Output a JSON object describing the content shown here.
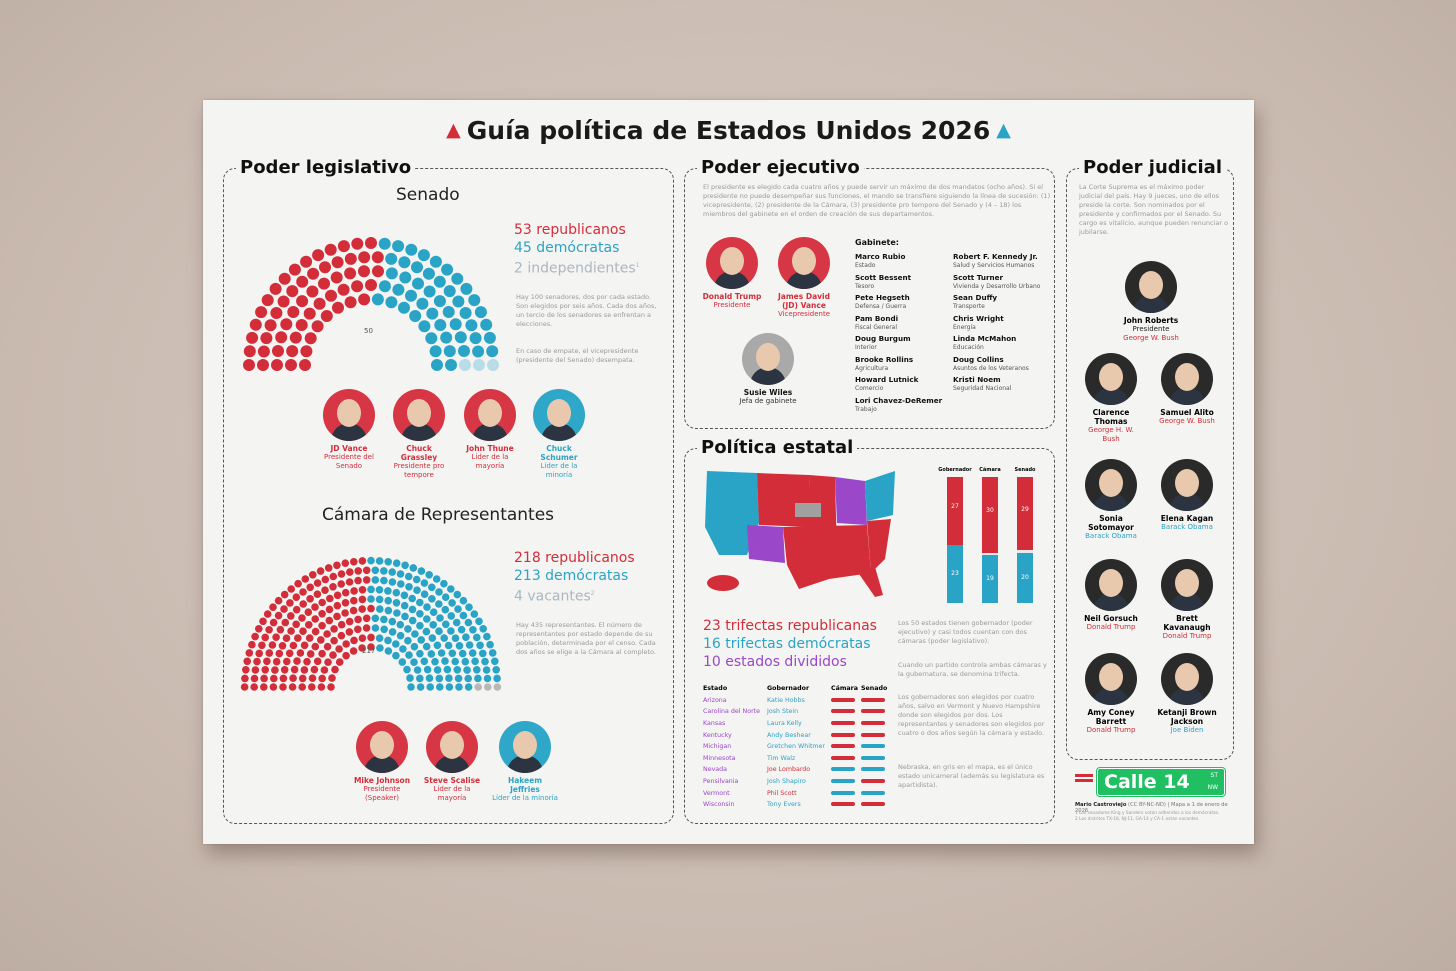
{
  "title": "Guía política de Estados Unidos 2026",
  "icons": {
    "left": "elephant-icon",
    "right": "donkey-icon"
  },
  "colors": {
    "republican": "#d42d3a",
    "democrat": "#2aa4c6",
    "independent": "#aab8c2",
    "split": "#9a47c9"
  },
  "legislativo": {
    "heading": "Poder legislativo",
    "senado": {
      "title": "Senado",
      "rep": "53 republicanos",
      "dem": "45 demócratas",
      "ind": "2 independientes",
      "ind_note": "1",
      "rep_count": 53,
      "dem_count": 45,
      "ind_count": 2,
      "mid_label": "50",
      "text1": "Hay 100 senadores, dos por cada estado. Son elegidos por seis años. Cada dos años, un tercio de los senadores se enfrentan a elecciones.",
      "text2": "En caso de empate, el vicepresidente (presidente del Senado) desempata.",
      "people": [
        {
          "name": "JD Vance",
          "role": "Presidente del Senado",
          "party": "red"
        },
        {
          "name": "Chuck Grassley",
          "role": "Presidente pro tempore",
          "party": "red"
        },
        {
          "name": "John Thune",
          "role": "Líder de la mayoría",
          "party": "red"
        },
        {
          "name": "Chuck Schumer",
          "role": "Líder de la minoría",
          "party": "blue"
        }
      ]
    },
    "camara": {
      "title": "Cámara de Representantes",
      "rep": "218 republicanos",
      "dem": "213 demócratas",
      "vac": "4 vacantes",
      "vac_note": "2",
      "rep_count": 218,
      "dem_count": 213,
      "vac_count": 4,
      "mid_label": "217",
      "text1": "Hay 435 representantes. El número de representantes por estado depende de su población, determinada por el censo. Cada dos años se elige a la Cámara al completo.",
      "people": [
        {
          "name": "Mike Johnson",
          "role": "Presidente (Speaker)",
          "party": "red"
        },
        {
          "name": "Steve Scalise",
          "role": "Líder de la mayoría",
          "party": "red"
        },
        {
          "name": "Hakeem Jeffries",
          "role": "Líder de la minoría",
          "party": "blue"
        }
      ]
    }
  },
  "ejecutivo": {
    "heading": "Poder ejecutivo",
    "text": "El presidente es elegido cada cuatro años y puede servir un máximo de dos mandatos (ocho años). Si el presidente no puede desempeñar sus funciones, el mando se transfiere siguiendo la línea de sucesión: (1) vicepresidente, (2) presidente de la Cámara, (3) presidente pro tempore del Senado y (4 – 18) los miembros del gabinete en el orden de creación de sus departamentos.",
    "people": [
      {
        "name": "Donald Trump",
        "role": "Presidente",
        "party": "red"
      },
      {
        "name": "James David (JD) Vance",
        "role": "Vicepresidente",
        "party": "red"
      },
      {
        "name": "Susie Wiles",
        "role": "Jefa de gabinete",
        "party": "grey"
      }
    ],
    "gabinete_label": "Gabinete:",
    "gabinete": [
      {
        "name": "Marco Rubio",
        "dept": "Estado"
      },
      {
        "name": "Scott Bessent",
        "dept": "Tesoro"
      },
      {
        "name": "Pete Hegseth",
        "dept": "Defensa / Guerra"
      },
      {
        "name": "Pam Bondi",
        "dept": "Fiscal General"
      },
      {
        "name": "Doug Burgum",
        "dept": "Interior"
      },
      {
        "name": "Brooke Rollins",
        "dept": "Agricultura"
      },
      {
        "name": "Howard Lutnick",
        "dept": "Comercio"
      },
      {
        "name": "Lori Chavez-DeRemer",
        "dept": "Trabajo"
      },
      {
        "name": "Robert F. Kennedy Jr.",
        "dept": "Salud y Servicios Humanos"
      },
      {
        "name": "Scott Turner",
        "dept": "Vivienda y Desarrollo Urbano"
      },
      {
        "name": "Sean Duffy",
        "dept": "Transporte"
      },
      {
        "name": "Chris Wright",
        "dept": "Energía"
      },
      {
        "name": "Linda McMahon",
        "dept": "Educación"
      },
      {
        "name": "Doug Collins",
        "dept": "Asuntos de los Veteranos"
      },
      {
        "name": "Kristi Noem",
        "dept": "Seguridad Nacional"
      }
    ]
  },
  "estatal": {
    "heading": "Política estatal",
    "bars": [
      {
        "label": "Gobernador",
        "rep": 27,
        "dem": 23,
        "rep_label": "27",
        "dem_label": "23"
      },
      {
        "label": "Cámara",
        "rep": 30,
        "dem": 19,
        "rep_label": "30",
        "dem_label": "19"
      },
      {
        "label": "Senado",
        "rep": 29,
        "dem": 20,
        "rep_label": "29",
        "dem_label": "20"
      }
    ],
    "trifectas_rep": "23 trifectas republicanas",
    "trifectas_dem": "16 trifectas demócratas",
    "divididos": "10 estados divididos",
    "text1": "Los 50 estados tienen gobernador (poder ejecutivo) y casi todos cuentan con dos cámaras (poder legislativo).",
    "text2": "Cuando un partido controla ambas cámaras y la gubernatura, se denomina trifecta.",
    "text3": "Los gobernadores son elegidos por cuatro años, salvo en Vermont y Nuevo Hampshire donde son elegidos por dos. Los representantes y senadores son elegidos por cuatro o dos años según la cámara y estado.",
    "text4": "Nebraska, en gris en el mapa, es el único estado unicameral (además su legislatura es apartidista).",
    "table_headers": [
      "Estado",
      "Gobernador",
      "Cámara",
      "Senado"
    ],
    "table": [
      {
        "state": "Arizona",
        "gov": "Katie Hobbs",
        "gov_party": "blue",
        "house": "red",
        "senate": "red"
      },
      {
        "state": "Carolina del Norte",
        "gov": "Josh Stein",
        "gov_party": "blue",
        "house": "red",
        "senate": "red"
      },
      {
        "state": "Kansas",
        "gov": "Laura Kelly",
        "gov_party": "blue",
        "house": "red",
        "senate": "red"
      },
      {
        "state": "Kentucky",
        "gov": "Andy Beshear",
        "gov_party": "blue",
        "house": "red",
        "senate": "red"
      },
      {
        "state": "Michigan",
        "gov": "Gretchen Whitmer",
        "gov_party": "blue",
        "house": "red",
        "senate": "blue"
      },
      {
        "state": "Minnesota",
        "gov": "Tim Walz",
        "gov_party": "blue",
        "house": "red",
        "senate": "blue"
      },
      {
        "state": "Nevada",
        "gov": "Joe Lombardo",
        "gov_party": "red",
        "house": "blue",
        "senate": "blue"
      },
      {
        "state": "Pensilvania",
        "gov": "Josh Shapiro",
        "gov_party": "blue",
        "house": "blue",
        "senate": "red"
      },
      {
        "state": "Vermont",
        "gov": "Phil Scott",
        "gov_party": "red",
        "house": "blue",
        "senate": "blue"
      },
      {
        "state": "Wisconsin",
        "gov": "Tony Evers",
        "gov_party": "blue",
        "house": "red",
        "senate": "red"
      }
    ]
  },
  "judicial": {
    "heading": "Poder judicial",
    "text": "La Corte Suprema es el máximo poder judicial del país. Hay 9 jueces, uno de ellos preside la corte. Son nominados por el presidente y confirmados por el Senado. Su cargo es vitalicio, aunque pueden renunciar o jubilarse.",
    "justices": [
      {
        "name": "John Roberts",
        "title": "Presidente",
        "by": "George W. Bush",
        "party": "red"
      },
      {
        "name": "Clarence Thomas",
        "title": "",
        "by": "George H. W. Bush",
        "party": "red"
      },
      {
        "name": "Samuel Alito",
        "title": "",
        "by": "George W. Bush",
        "party": "red"
      },
      {
        "name": "Sonia Sotomayor",
        "title": "",
        "by": "Barack Obama",
        "party": "blue"
      },
      {
        "name": "Elena Kagan",
        "title": "",
        "by": "Barack Obama",
        "party": "blue"
      },
      {
        "name": "Neil Gorsuch",
        "title": "",
        "by": "Donald Trump",
        "party": "red"
      },
      {
        "name": "Brett Kavanaugh",
        "title": "",
        "by": "Donald Trump",
        "party": "red"
      },
      {
        "name": "Amy Coney Barrett",
        "title": "",
        "by": "Donald Trump",
        "party": "red"
      },
      {
        "name": "Ketanji Brown Jackson",
        "title": "",
        "by": "Joe Biden",
        "party": "blue"
      }
    ]
  },
  "footer": {
    "brand": "Calle 14",
    "street_top": "ST",
    "street_bottom": "NW",
    "credit": "Mario Castroviejo",
    "license": "(CC BY-NC-ND) | Mapa a 1 de enero de 2026",
    "note1": "1 Los senadores King y Sanders votan adheridos a los demócratas.",
    "note2": "2 Los distritos TX-18, NJ-11, GA-14 y CA-1 están vacantes."
  }
}
